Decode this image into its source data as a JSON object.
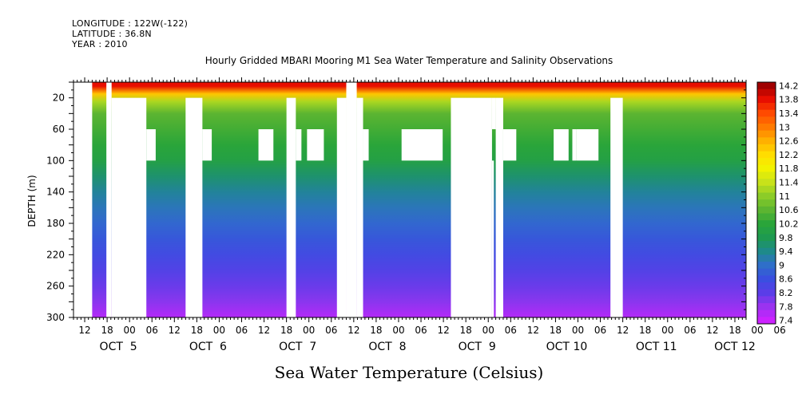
{
  "header": {
    "longitude": "LONGITUDE : 122W(-122)",
    "latitude": "LATITUDE : 36.8N",
    "year": "YEAR : 2010"
  },
  "chart_data": {
    "type": "heatmap",
    "title": "Hourly Gridded MBARI Mooring M1 Sea Water Temperature and Salinity Observations",
    "xlabel": "Sea Water Temperature (Celsius)",
    "ylabel": "DEPTH (m)",
    "ylim": [
      0,
      300
    ],
    "y_inverted": true,
    "y_ticks": [
      20,
      60,
      100,
      140,
      180,
      220,
      260,
      300
    ],
    "x_hour_ticks": [
      "12",
      "18",
      "00",
      "06",
      "12",
      "18",
      "00",
      "06",
      "12",
      "18",
      "00",
      "06",
      "12",
      "18",
      "00",
      "06",
      "12",
      "18",
      "00",
      "06",
      "12",
      "18",
      "00",
      "06",
      "12",
      "18",
      "00",
      "06",
      "12",
      "18",
      "00",
      "06"
    ],
    "x_date_labels": [
      {
        "label": "OCT  5",
        "hour": 12
      },
      {
        "label": "OCT  6",
        "hour": 36
      },
      {
        "label": "OCT  7",
        "hour": 60
      },
      {
        "label": "OCT  8",
        "hour": 84
      },
      {
        "label": "OCT  9",
        "hour": 108
      },
      {
        "label": "OCT 10",
        "hour": 132
      },
      {
        "label": "OCT 11",
        "hour": 156
      },
      {
        "label": "OCT 12",
        "hour": 177
      }
    ],
    "colorbar": {
      "levels": [
        14.2,
        14.0,
        13.8,
        13.6,
        13.4,
        13.2,
        13.0,
        12.8,
        12.6,
        12.4,
        12.2,
        12.0,
        11.8,
        11.6,
        11.4,
        11.2,
        11.0,
        10.8,
        10.6,
        10.4,
        10.2,
        10.0,
        9.8,
        9.6,
        9.4,
        9.2,
        9.0,
        8.8,
        8.6,
        8.4,
        8.2,
        8.0,
        7.8,
        7.6,
        7.4
      ],
      "labels": [
        "14.2",
        "13.8",
        "13.4",
        "13",
        "12.6",
        "12.2",
        "11.8",
        "11.4",
        "11",
        "10.6",
        "10.2",
        "9.8",
        "9.4",
        "9",
        "8.6",
        "8.2",
        "7.8",
        "7.4"
      ]
    },
    "temperature_profile": [
      {
        "depth": 5,
        "temp": 13.8
      },
      {
        "depth": 15,
        "temp": 12.4
      },
      {
        "depth": 25,
        "temp": 11.2
      },
      {
        "depth": 40,
        "temp": 10.6
      },
      {
        "depth": 60,
        "temp": 10.4
      },
      {
        "depth": 80,
        "temp": 10.2
      },
      {
        "depth": 100,
        "temp": 10.0
      },
      {
        "depth": 120,
        "temp": 9.6
      },
      {
        "depth": 140,
        "temp": 9.3
      },
      {
        "depth": 160,
        "temp": 9.1
      },
      {
        "depth": 180,
        "temp": 8.9
      },
      {
        "depth": 200,
        "temp": 8.7
      },
      {
        "depth": 220,
        "temp": 8.5
      },
      {
        "depth": 240,
        "temp": 8.3
      },
      {
        "depth": 260,
        "temp": 8.1
      },
      {
        "depth": 280,
        "temp": 7.9
      },
      {
        "depth": 300,
        "temp": 7.6
      }
    ],
    "missing_data": [
      {
        "t0": 0,
        "t1": 5,
        "d0": 0,
        "d1": 300
      },
      {
        "t0": 8.8,
        "t1": 10.2,
        "d0": 0,
        "d1": 300
      },
      {
        "t0": 10.2,
        "t1": 19.5,
        "d0": 20,
        "d1": 300
      },
      {
        "t0": 19.5,
        "t1": 22,
        "d0": 60,
        "d1": 100
      },
      {
        "t0": 30,
        "t1": 34.5,
        "d0": 20,
        "d1": 300
      },
      {
        "t0": 34.5,
        "t1": 37,
        "d0": 60,
        "d1": 100
      },
      {
        "t0": 49.5,
        "t1": 53.5,
        "d0": 60,
        "d1": 100
      },
      {
        "t0": 57,
        "t1": 59.5,
        "d0": 20,
        "d1": 300
      },
      {
        "t0": 59.5,
        "t1": 61,
        "d0": 60,
        "d1": 100
      },
      {
        "t0": 62.5,
        "t1": 67,
        "d0": 60,
        "d1": 100
      },
      {
        "t0": 73,
        "t1": 75.8,
        "d0": 0,
        "d1": 300
      },
      {
        "t0": 70.5,
        "t1": 73,
        "d0": 20,
        "d1": 300
      },
      {
        "t0": 75.8,
        "t1": 77.5,
        "d0": 20,
        "d1": 300
      },
      {
        "t0": 77.5,
        "t1": 79,
        "d0": 60,
        "d1": 100
      },
      {
        "t0": 87.8,
        "t1": 98.8,
        "d0": 60,
        "d1": 100
      },
      {
        "t0": 101,
        "t1": 112,
        "d0": 20,
        "d1": 300
      },
      {
        "t0": 112,
        "t1": 112.5,
        "d0": 100,
        "d1": 300
      },
      {
        "t0": 112,
        "t1": 113,
        "d0": 20,
        "d1": 60
      },
      {
        "t0": 113,
        "t1": 115,
        "d0": 20,
        "d1": 300
      },
      {
        "t0": 115,
        "t1": 118.5,
        "d0": 60,
        "d1": 100
      },
      {
        "t0": 128.5,
        "t1": 132.5,
        "d0": 60,
        "d1": 100
      },
      {
        "t0": 133.5,
        "t1": 134.5,
        "d0": 60,
        "d1": 100
      },
      {
        "t0": 134.5,
        "t1": 140.5,
        "d0": 60,
        "d1": 100
      },
      {
        "t0": 143.7,
        "t1": 147,
        "d0": 20,
        "d1": 300
      }
    ]
  }
}
